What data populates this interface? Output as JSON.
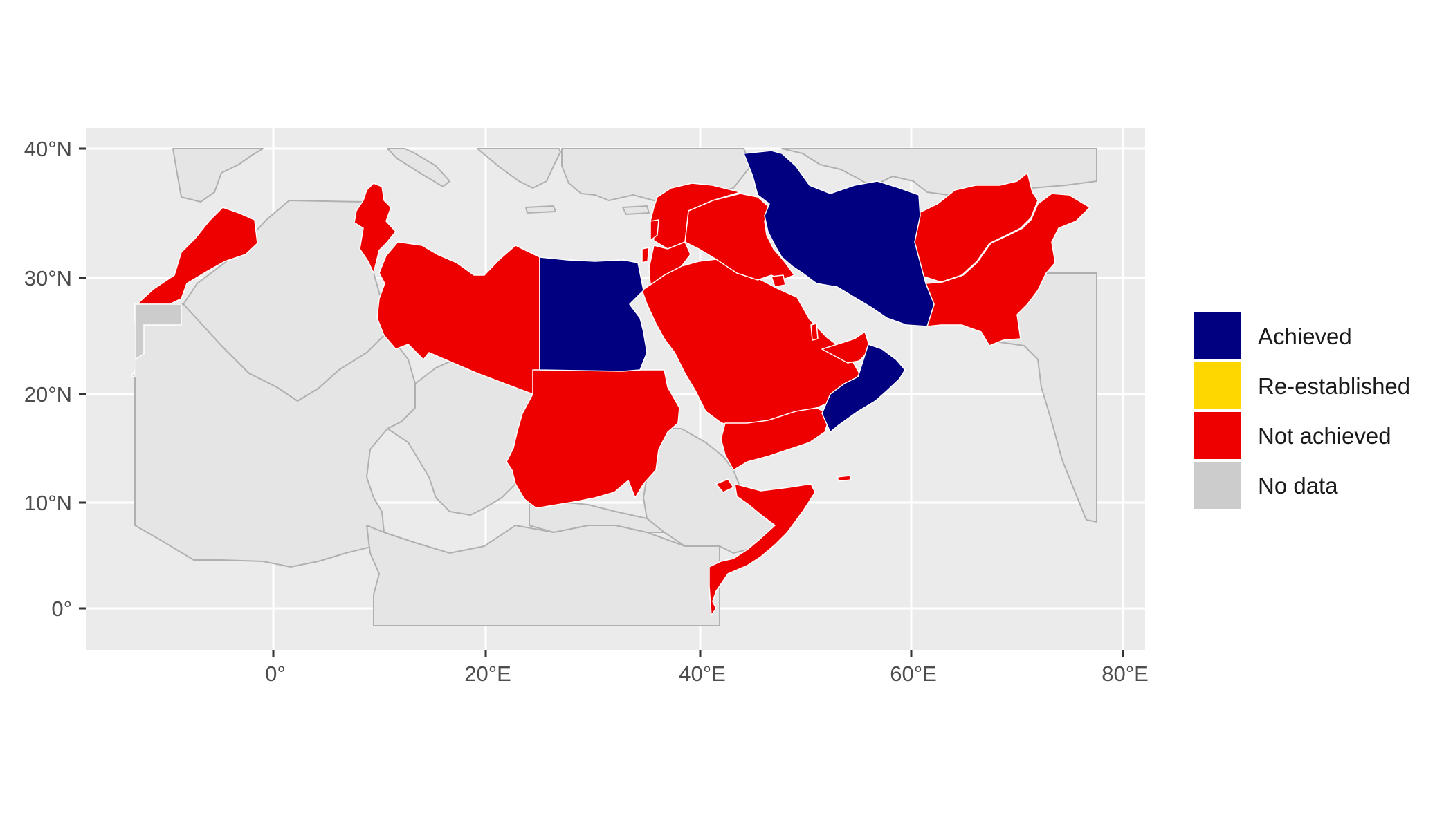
{
  "map": {
    "axis": {
      "y_ticks": [
        "40°N",
        "30°N",
        "20°N",
        "10°N",
        "0°"
      ],
      "x_ticks": [
        "0°",
        "20°E",
        "40°E",
        "60°E",
        "80°E"
      ]
    },
    "legend": {
      "placement": "right",
      "items": [
        {
          "label": "Achieved",
          "color": "#000080"
        },
        {
          "label": "Re-established",
          "color": "#FFD700"
        },
        {
          "label": "Not achieved",
          "color": "#EE0000"
        },
        {
          "label": "No data",
          "color": "#CCCCCC"
        }
      ]
    },
    "colors": {
      "panel_background": "#EBEBEB",
      "gridline": "#FFFFFF",
      "base_land": "#E5E5E5",
      "base_border": "#B0B0B0"
    },
    "countries": {
      "achieved": [
        "Iran",
        "Egypt",
        "Oman"
      ],
      "not_achieved": [
        "Morocco",
        "Tunisia",
        "Libya",
        "Sudan",
        "Somalia",
        "Djibouti",
        "Saudi Arabia",
        "Yemen",
        "Iraq",
        "Syria",
        "Lebanon",
        "Jordan",
        "Palestine",
        "Kuwait",
        "Bahrain",
        "Qatar",
        "United Arab Emirates",
        "Afghanistan",
        "Pakistan"
      ],
      "no_data": [
        "Western Sahara"
      ]
    }
  }
}
